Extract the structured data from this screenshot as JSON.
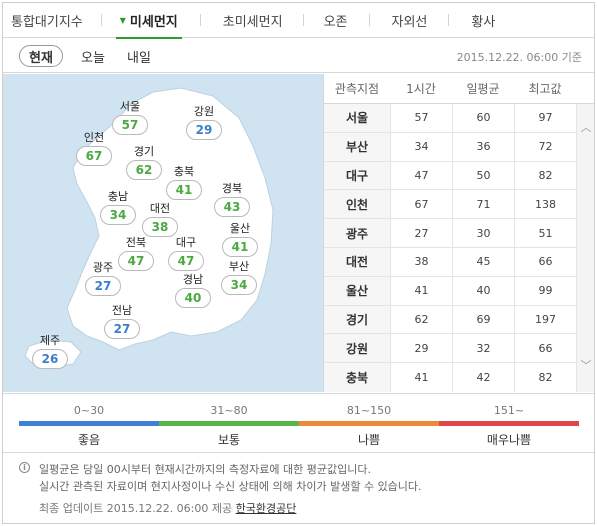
{
  "top_tabs": [
    {
      "label": "통합대기지수",
      "active": false
    },
    {
      "label": "미세먼지",
      "active": true
    },
    {
      "label": "초미세먼지",
      "active": false
    },
    {
      "label": "오존",
      "active": false
    },
    {
      "label": "자외선",
      "active": false
    },
    {
      "label": "황사",
      "active": false
    }
  ],
  "time_tabs": [
    {
      "label": "현재",
      "active": true
    },
    {
      "label": "오늘",
      "active": false
    },
    {
      "label": "내일",
      "active": false
    }
  ],
  "datetime": "2015.12.22. 06:00 기준",
  "map_regions": [
    {
      "name": "서울",
      "value": "57",
      "level": "normal"
    },
    {
      "name": "강원",
      "value": "29",
      "level": "good"
    },
    {
      "name": "인천",
      "value": "67",
      "level": "normal"
    },
    {
      "name": "경기",
      "value": "62",
      "level": "normal"
    },
    {
      "name": "충북",
      "value": "41",
      "level": "normal"
    },
    {
      "name": "충남",
      "value": "34",
      "level": "normal"
    },
    {
      "name": "대전",
      "value": "38",
      "level": "normal"
    },
    {
      "name": "경북",
      "value": "43",
      "level": "normal"
    },
    {
      "name": "울산",
      "value": "41",
      "level": "normal"
    },
    {
      "name": "전북",
      "value": "47",
      "level": "normal"
    },
    {
      "name": "대구",
      "value": "47",
      "level": "normal"
    },
    {
      "name": "부산",
      "value": "34",
      "level": "normal"
    },
    {
      "name": "광주",
      "value": "27",
      "level": "good"
    },
    {
      "name": "경남",
      "value": "40",
      "level": "normal"
    },
    {
      "name": "전남",
      "value": "27",
      "level": "good"
    },
    {
      "name": "제주",
      "value": "26",
      "level": "good"
    }
  ],
  "table": {
    "headers": [
      "관측지점",
      "1시간",
      "일평균",
      "최고값"
    ],
    "rows": [
      [
        "서울",
        "57",
        "60",
        "97"
      ],
      [
        "부산",
        "34",
        "36",
        "72"
      ],
      [
        "대구",
        "47",
        "50",
        "82"
      ],
      [
        "인천",
        "67",
        "71",
        "138"
      ],
      [
        "광주",
        "27",
        "30",
        "51"
      ],
      [
        "대전",
        "38",
        "45",
        "66"
      ],
      [
        "울산",
        "41",
        "40",
        "99"
      ],
      [
        "경기",
        "62",
        "69",
        "197"
      ],
      [
        "강원",
        "29",
        "32",
        "66"
      ],
      [
        "충북",
        "41",
        "42",
        "82"
      ]
    ]
  },
  "legend": [
    {
      "range": "0~30",
      "label": "좋음",
      "color": "#3f7fd6"
    },
    {
      "range": "31~80",
      "label": "보통",
      "color": "#58b547"
    },
    {
      "range": "81~150",
      "label": "나쁨",
      "color": "#f0883a"
    },
    {
      "range": "151~",
      "label": "매우나쁨",
      "color": "#e0474c"
    }
  ],
  "notes": {
    "line1": "일평균은 당일 00시부터 현재시간까지의 측정자료에 대한 평균값입니다.",
    "line2": "실시간 관측된 자료이며 현지사정이나 수신 상태에 의해 차이가 발생할 수 있습니다.",
    "update_prefix": "최종 업데이트 2015.12.22. 06:00 제공",
    "provider": "한국환경공단"
  },
  "icons": {
    "active_tab_marker": "triangle-down-icon",
    "scroll_up": "chevron-up-icon",
    "scroll_down": "chevron-down-icon",
    "info": "info-icon"
  }
}
